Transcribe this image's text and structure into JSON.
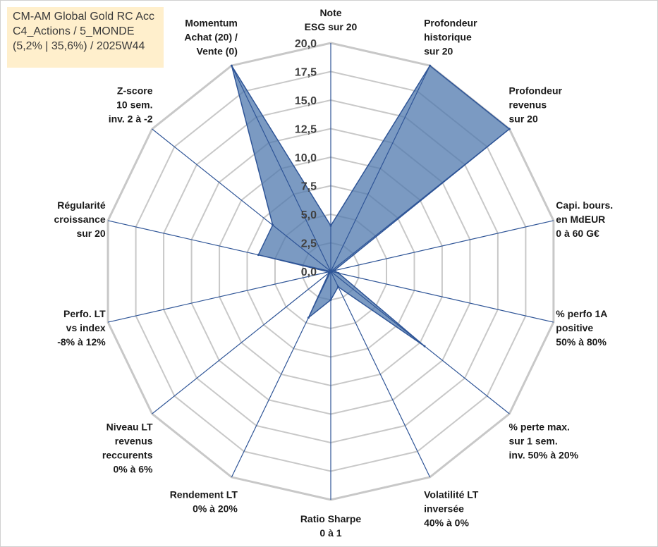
{
  "title": {
    "line1": "CM-AM Global Gold RC Acc",
    "line2": "C4_Actions / 5_MONDE",
    "line3": "(5,2% | 35,6%) / 2025W44"
  },
  "colors": {
    "fill": "#4f78ad",
    "line": "#2f5597",
    "grid": "#c8c8c8",
    "title_bg": "#ffefcc"
  },
  "chart_data": {
    "type": "radar",
    "rmin": 0,
    "rmax": 20,
    "tick_step": 2.5,
    "tick_labels": [
      "0,0",
      "2,5",
      "5,0",
      "7,5",
      "10,0",
      "12,5",
      "15,0",
      "17,5",
      "20,0"
    ],
    "axes": [
      {
        "label": [
          "Note",
          "ESG sur 20"
        ],
        "value": 4
      },
      {
        "label": [
          "Profondeur",
          "historique",
          "sur 20"
        ],
        "value": 20
      },
      {
        "label": [
          "Profondeur",
          "revenus",
          "sur 20"
        ],
        "value": 20
      },
      {
        "label": [
          "Capi. bours.",
          "en MdEUR",
          "0 à 60 G€"
        ],
        "value": 0.3
      },
      {
        "label": [
          "% perfo 1A",
          "positive",
          "50% à 80%"
        ],
        "value": 0.7
      },
      {
        "label": [
          "% perte max.",
          "sur 1 sem.",
          "inv. 50% à 20%"
        ],
        "value": 10.5
      },
      {
        "label": [
          "Volatilité LT",
          "inversée",
          "40% à 0%"
        ],
        "value": 1.5
      },
      {
        "label": [
          "Ratio Sharpe",
          "0 à 1"
        ],
        "value": 2.5
      },
      {
        "label": [
          "Rendement LT",
          "0% à 20%"
        ],
        "value": 4.5
      },
      {
        "label": [
          "Niveau LT",
          "revenus",
          "reccurents",
          "0% à 6%"
        ],
        "value": 0.2
      },
      {
        "label": [
          "Perfo. LT",
          "vs index",
          "-8% à 12%"
        ],
        "value": 0.2
      },
      {
        "label": [
          "Régularité",
          "croissance",
          "sur 20"
        ],
        "value": 6.5
      },
      {
        "label": [
          "Z-score",
          "10 sem.",
          "inv. 2 à -2"
        ],
        "value": 6.5
      },
      {
        "label": [
          "Momentum",
          "Achat (20) /",
          "Vente (0)"
        ],
        "value": 20
      }
    ]
  }
}
